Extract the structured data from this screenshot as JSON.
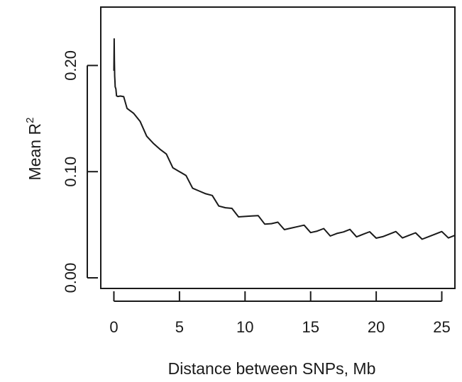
{
  "chart_data": {
    "type": "line",
    "xlabel": "Distance between SNPs, Mb",
    "ylabel": "Mean R",
    "ylabel_superscript": "2",
    "xlim": [
      -1,
      26
    ],
    "ylim": [
      -0.01,
      0.255
    ],
    "x_ticks": [
      0,
      5,
      10,
      15,
      20,
      25
    ],
    "x_tick_labels": [
      "0",
      "5",
      "10",
      "15",
      "20",
      "25"
    ],
    "y_ticks": [
      0.0,
      0.1,
      0.2
    ],
    "y_tick_labels": [
      "0.00",
      "0.10",
      "0.20"
    ],
    "grid": false,
    "legend": "none",
    "line_color": "#1a1a1a",
    "series": [
      {
        "x": [
          0.0,
          0.02,
          0.04,
          0.06,
          0.08,
          0.1,
          0.15,
          0.2,
          0.3,
          0.5,
          0.75,
          1.0,
          1.5,
          2.0,
          2.5,
          3.0,
          3.5,
          4.0,
          4.5,
          5.0,
          5.5,
          6.0,
          6.5,
          7.0,
          7.5,
          8.0,
          8.5,
          9.0,
          9.5,
          10.0,
          10.5,
          11.0,
          11.5,
          12.0,
          12.5,
          13.0,
          13.5,
          14.0,
          14.5,
          15.0,
          15.5,
          16.0,
          16.5,
          17.0,
          17.5,
          18.0,
          18.5,
          19.0,
          19.5,
          20.0,
          20.5,
          21.0,
          21.5,
          22.0,
          22.5,
          23.0,
          23.5,
          24.0,
          24.5,
          25.0,
          25.5,
          26.0
        ],
        "y": [
          0.195,
          0.225,
          0.205,
          0.19,
          0.185,
          0.18,
          0.178,
          0.175,
          0.172,
          0.17,
          0.167,
          0.162,
          0.155,
          0.145,
          0.137,
          0.128,
          0.12,
          0.113,
          0.106,
          0.1,
          0.094,
          0.088,
          0.083,
          0.078,
          0.074,
          0.07,
          0.066,
          0.063,
          0.061,
          0.059,
          0.057,
          0.055,
          0.053,
          0.051,
          0.05,
          0.049,
          0.048,
          0.047,
          0.046,
          0.045,
          0.044,
          0.044,
          0.043,
          0.043,
          0.042,
          0.042,
          0.041,
          0.041,
          0.041,
          0.041,
          0.04,
          0.04,
          0.04,
          0.04,
          0.04,
          0.04,
          0.04,
          0.04,
          0.04,
          0.04,
          0.04,
          0.04
        ]
      }
    ]
  }
}
